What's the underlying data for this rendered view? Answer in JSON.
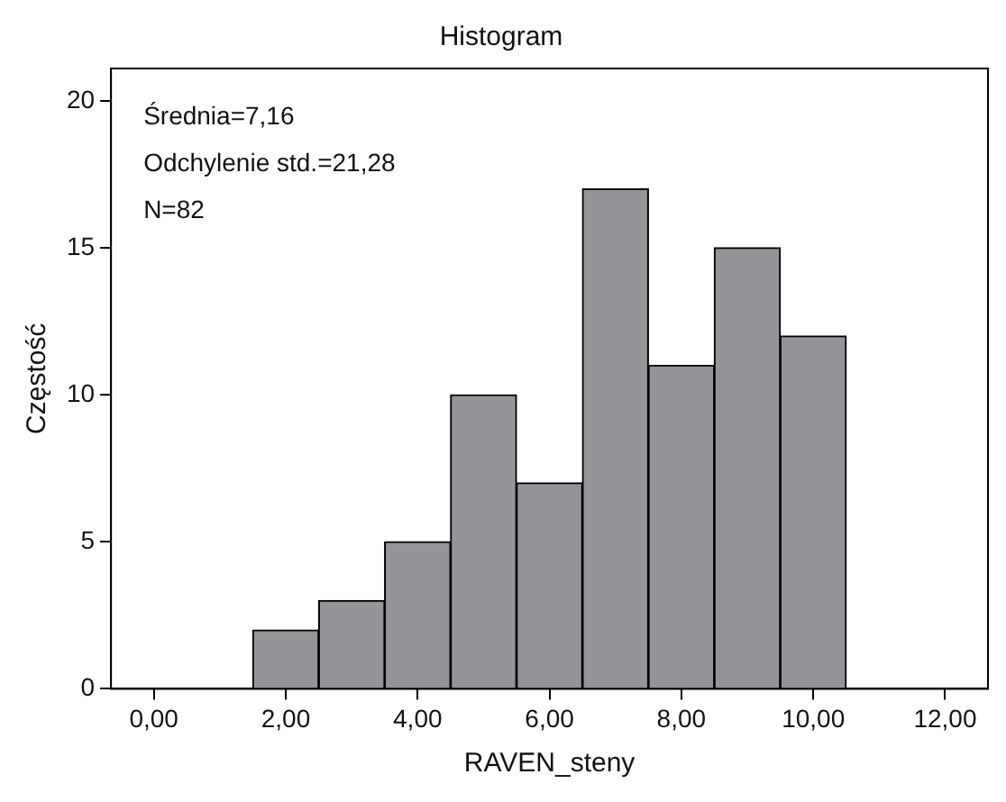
{
  "chart_data": {
    "type": "histogram",
    "title": "Histogram",
    "xlabel": "RAVEN_steny",
    "ylabel": "Częstość",
    "bins": [
      1.5,
      2.5,
      3.5,
      4.5,
      5.5,
      6.5,
      7.5,
      8.5,
      9.5,
      10.5
    ],
    "values": [
      2,
      3,
      5,
      10,
      7,
      17,
      11,
      15,
      12
    ],
    "color": "#939598",
    "xlim": [
      -0.65,
      12.65
    ],
    "xticks": [
      {
        "value": 0,
        "label": "0,00"
      },
      {
        "value": 2,
        "label": "2,00"
      },
      {
        "value": 4,
        "label": "4,00"
      },
      {
        "value": 6,
        "label": "6,00"
      },
      {
        "value": 8,
        "label": "8,00"
      },
      {
        "value": 10,
        "label": "10,00"
      },
      {
        "value": 12,
        "label": "12,00"
      }
    ],
    "ylim": [
      0,
      21.1
    ],
    "yticks": [
      0,
      5,
      10,
      15,
      20
    ],
    "grid": false,
    "legend": false,
    "annotations": [
      "Średnia=7,16",
      "Odchylenie std.=21,28",
      "N=82"
    ]
  }
}
